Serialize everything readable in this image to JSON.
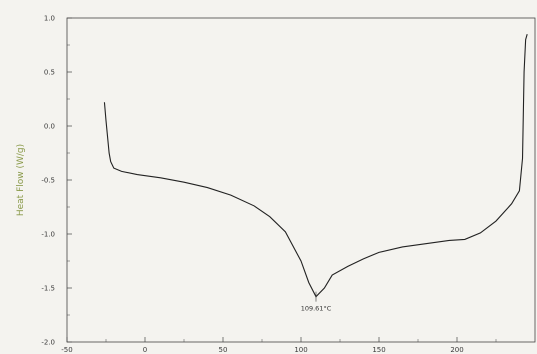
{
  "chart_data": {
    "type": "line",
    "title": "",
    "xlabel": "",
    "ylabel": "Heat Flow (W/g)",
    "xlim": [
      -50,
      250
    ],
    "ylim": [
      -2.0,
      1.0
    ],
    "x_ticks": [
      -50,
      0,
      50,
      100,
      150,
      200
    ],
    "x_tick_labels": [
      "-50",
      "0",
      "50",
      "100",
      "150",
      "200"
    ],
    "y_ticks": [
      1.0,
      0.5,
      0.0,
      -0.5,
      -1.0,
      -1.5,
      -2.0
    ],
    "y_tick_labels": [
      "1.0",
      "0.5",
      "0.0",
      "-0.5",
      "-1.0",
      "-1.5",
      "-2.0"
    ],
    "grid": false,
    "series": [
      {
        "x": [
          -26,
          -25,
          -24,
          -23,
          -22,
          -20,
          -15,
          -5,
          10,
          25,
          40,
          55,
          70,
          80,
          90,
          100,
          105,
          109.61,
          115,
          120,
          130,
          140,
          150,
          165,
          180,
          195,
          205,
          215,
          225,
          235,
          240,
          242,
          243,
          244,
          245
        ],
        "y": [
          0.22,
          0.05,
          -0.1,
          -0.25,
          -0.33,
          -0.39,
          -0.42,
          -0.45,
          -0.48,
          -0.52,
          -0.57,
          -0.64,
          -0.74,
          -0.84,
          -0.98,
          -1.25,
          -1.45,
          -1.58,
          -1.5,
          -1.38,
          -1.3,
          -1.23,
          -1.17,
          -1.12,
          -1.09,
          -1.06,
          -1.05,
          -0.99,
          -0.88,
          -0.72,
          -0.6,
          -0.3,
          0.5,
          0.8,
          0.85
        ],
        "color": "#222222"
      }
    ],
    "annotations": [
      {
        "text": "109.61°C",
        "x": 109.61,
        "y": -1.58
      }
    ]
  }
}
